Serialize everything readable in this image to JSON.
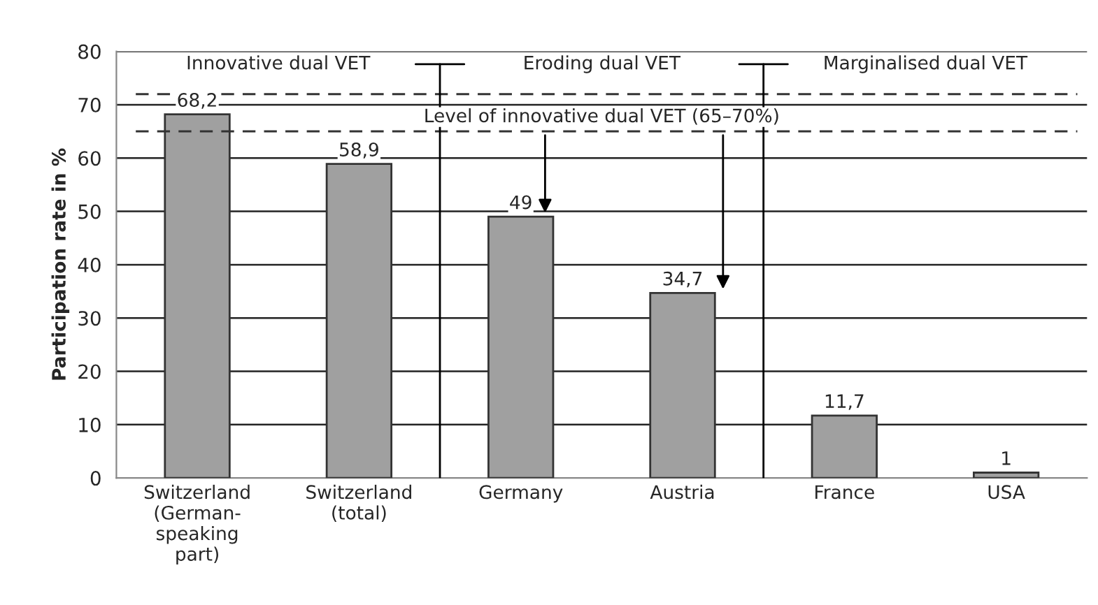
{
  "chart_data": {
    "type": "bar",
    "ylabel": "Participation rate in %",
    "categories": [
      "Switzerland\n(German-\nspeaking\npart)",
      "Switzerland\n(total)",
      "Germany",
      "Austria",
      "France",
      "USA"
    ],
    "values": [
      68.2,
      58.9,
      49,
      34.7,
      11.7,
      1
    ],
    "value_labels": [
      "68,2",
      "58,9",
      "49",
      "34,7",
      "11,7",
      "1"
    ],
    "color": "#a0a0a0",
    "ylim": [
      0,
      80
    ],
    "yticks": [
      0,
      10,
      20,
      30,
      40,
      50,
      60,
      70,
      80
    ],
    "grid": "y",
    "legend": false,
    "ref_lines": [
      {
        "axis": "y",
        "value": 72,
        "label": null,
        "color": "#333333",
        "line_style": "dashed"
      },
      {
        "axis": "y",
        "value": 65,
        "label": "Level of innovative dual VET (65–70%)",
        "color": "#333333",
        "line_style": "dashed"
      }
    ],
    "annotations": [
      "Innovative dual VET",
      "Eroding dual VET",
      "Marginalised dual VET"
    ]
  }
}
